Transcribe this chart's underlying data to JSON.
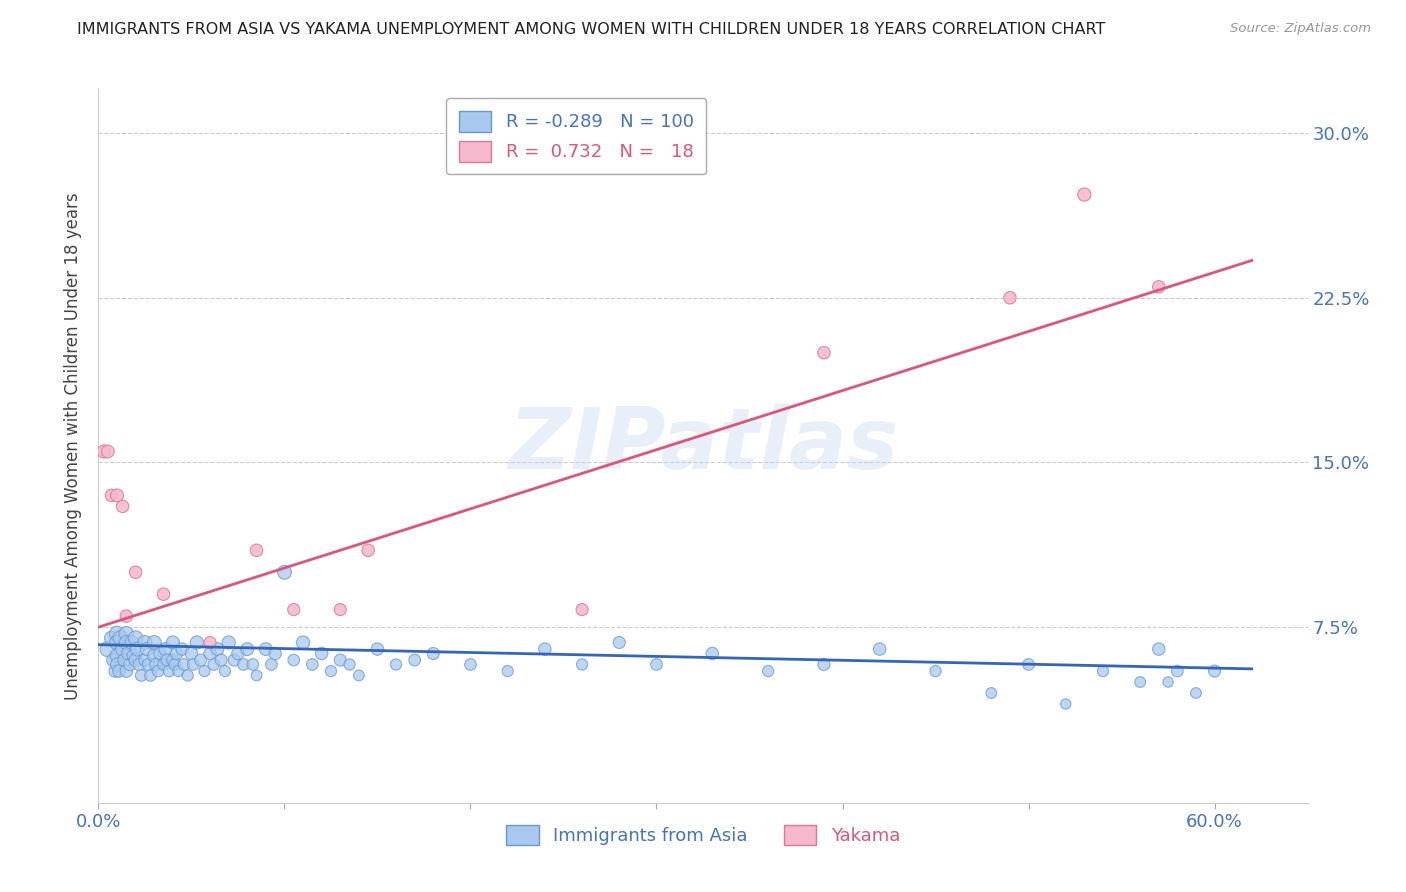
{
  "title": "IMMIGRANTS FROM ASIA VS YAKAMA UNEMPLOYMENT AMONG WOMEN WITH CHILDREN UNDER 18 YEARS CORRELATION CHART",
  "source": "Source: ZipAtlas.com",
  "ylabel": "Unemployment Among Women with Children Under 18 years",
  "ytick_labels": [
    "7.5%",
    "15.0%",
    "22.5%",
    "30.0%"
  ],
  "ytick_values": [
    0.075,
    0.15,
    0.225,
    0.3
  ],
  "xlim": [
    0.0,
    0.65
  ],
  "ylim": [
    -0.005,
    0.32
  ],
  "legend_blue_R": "-0.289",
  "legend_blue_N": "100",
  "legend_pink_R": "0.732",
  "legend_pink_N": "18",
  "watermark": "ZIPatlas",
  "blue_color": "#a8c8f0",
  "blue_edge": "#6699cc",
  "pink_color": "#f5b8cc",
  "pink_edge": "#dd7799",
  "blue_line_color": "#3366bb",
  "pink_line_color": "#dd5577",
  "title_color": "#222222",
  "axis_tick_color": "#4472c4",
  "blue_scatter_x": [
    0.005,
    0.007,
    0.008,
    0.009,
    0.01,
    0.01,
    0.01,
    0.01,
    0.011,
    0.012,
    0.013,
    0.014,
    0.015,
    0.015,
    0.015,
    0.016,
    0.017,
    0.018,
    0.019,
    0.02,
    0.02,
    0.021,
    0.022,
    0.023,
    0.025,
    0.025,
    0.026,
    0.027,
    0.028,
    0.03,
    0.03,
    0.031,
    0.032,
    0.033,
    0.035,
    0.036,
    0.037,
    0.038,
    0.04,
    0.04,
    0.041,
    0.042,
    0.043,
    0.045,
    0.046,
    0.048,
    0.05,
    0.051,
    0.053,
    0.055,
    0.057,
    0.06,
    0.062,
    0.064,
    0.066,
    0.068,
    0.07,
    0.073,
    0.075,
    0.078,
    0.08,
    0.083,
    0.085,
    0.09,
    0.093,
    0.095,
    0.1,
    0.105,
    0.11,
    0.115,
    0.12,
    0.125,
    0.13,
    0.135,
    0.14,
    0.15,
    0.16,
    0.17,
    0.18,
    0.2,
    0.22,
    0.24,
    0.26,
    0.28,
    0.3,
    0.33,
    0.36,
    0.39,
    0.42,
    0.45,
    0.48,
    0.5,
    0.52,
    0.54,
    0.56,
    0.57,
    0.575,
    0.58,
    0.59,
    0.6
  ],
  "blue_scatter_y": [
    0.065,
    0.07,
    0.06,
    0.055,
    0.072,
    0.068,
    0.062,
    0.058,
    0.055,
    0.07,
    0.065,
    0.06,
    0.072,
    0.068,
    0.055,
    0.063,
    0.058,
    0.068,
    0.062,
    0.07,
    0.06,
    0.065,
    0.058,
    0.053,
    0.068,
    0.06,
    0.065,
    0.058,
    0.053,
    0.068,
    0.062,
    0.058,
    0.055,
    0.063,
    0.058,
    0.065,
    0.06,
    0.055,
    0.068,
    0.06,
    0.058,
    0.063,
    0.055,
    0.065,
    0.058,
    0.053,
    0.063,
    0.058,
    0.068,
    0.06,
    0.055,
    0.063,
    0.058,
    0.065,
    0.06,
    0.055,
    0.068,
    0.06,
    0.063,
    0.058,
    0.065,
    0.058,
    0.053,
    0.065,
    0.058,
    0.063,
    0.1,
    0.06,
    0.068,
    0.058,
    0.063,
    0.055,
    0.06,
    0.058,
    0.053,
    0.065,
    0.058,
    0.06,
    0.063,
    0.058,
    0.055,
    0.065,
    0.058,
    0.068,
    0.058,
    0.063,
    0.055,
    0.058,
    0.065,
    0.055,
    0.045,
    0.058,
    0.04,
    0.055,
    0.05,
    0.065,
    0.05,
    0.055,
    0.045,
    0.055
  ],
  "blue_scatter_size": [
    120,
    100,
    90,
    80,
    120,
    110,
    100,
    90,
    80,
    120,
    100,
    90,
    110,
    100,
    80,
    90,
    80,
    100,
    90,
    110,
    90,
    100,
    80,
    70,
    100,
    80,
    90,
    80,
    70,
    100,
    90,
    80,
    70,
    80,
    70,
    90,
    80,
    70,
    90,
    80,
    70,
    80,
    65,
    80,
    70,
    65,
    80,
    70,
    90,
    75,
    65,
    80,
    70,
    85,
    75,
    65,
    90,
    75,
    80,
    70,
    85,
    70,
    60,
    85,
    70,
    80,
    100,
    70,
    90,
    70,
    80,
    65,
    75,
    65,
    60,
    80,
    65,
    70,
    75,
    70,
    65,
    80,
    65,
    75,
    70,
    80,
    65,
    75,
    80,
    65,
    60,
    70,
    55,
    65,
    60,
    80,
    55,
    70,
    60,
    75
  ],
  "pink_scatter_x": [
    0.003,
    0.005,
    0.007,
    0.01,
    0.013,
    0.015,
    0.02,
    0.035,
    0.06,
    0.085,
    0.105,
    0.13,
    0.145,
    0.26,
    0.39,
    0.49,
    0.53,
    0.57
  ],
  "pink_scatter_y": [
    0.155,
    0.155,
    0.135,
    0.135,
    0.13,
    0.08,
    0.1,
    0.09,
    0.068,
    0.11,
    0.083,
    0.083,
    0.11,
    0.083,
    0.2,
    0.225,
    0.272,
    0.23
  ],
  "pink_scatter_size": [
    90,
    85,
    80,
    85,
    80,
    80,
    80,
    80,
    75,
    80,
    75,
    75,
    80,
    75,
    80,
    80,
    90,
    80
  ],
  "blue_trend_x": [
    0.0,
    0.62
  ],
  "blue_trend_y": [
    0.067,
    0.056
  ],
  "pink_trend_x": [
    0.0,
    0.62
  ],
  "pink_trend_y": [
    0.075,
    0.242
  ]
}
